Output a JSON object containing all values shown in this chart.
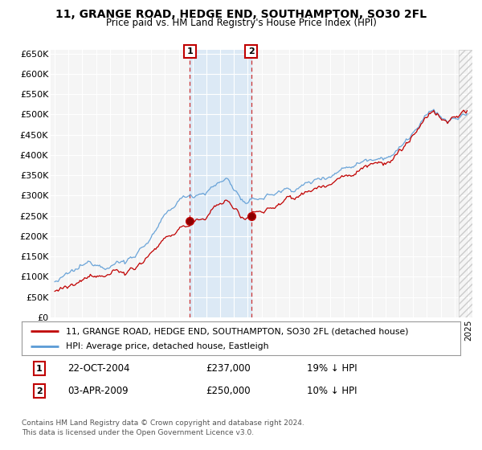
{
  "title": "11, GRANGE ROAD, HEDGE END, SOUTHAMPTON, SO30 2FL",
  "subtitle": "Price paid vs. HM Land Registry's House Price Index (HPI)",
  "ylim": [
    0,
    660000
  ],
  "yticks": [
    0,
    50000,
    100000,
    150000,
    200000,
    250000,
    300000,
    350000,
    400000,
    450000,
    500000,
    550000,
    600000,
    650000
  ],
  "ytick_labels": [
    "£0",
    "£50K",
    "£100K",
    "£150K",
    "£200K",
    "£250K",
    "£300K",
    "£350K",
    "£400K",
    "£450K",
    "£500K",
    "£550K",
    "£600K",
    "£650K"
  ],
  "hpi_color": "#5b9bd5",
  "price_color": "#c00000",
  "transaction1_date": 2004.81,
  "transaction1_price": 237000,
  "transaction2_date": 2009.25,
  "transaction2_price": 250000,
  "legend_line1": "11, GRANGE ROAD, HEDGE END, SOUTHAMPTON, SO30 2FL (detached house)",
  "legend_line2": "HPI: Average price, detached house, Eastleigh",
  "annotation1_date": "22-OCT-2004",
  "annotation1_price": "£237,000",
  "annotation1_hpi": "19% ↓ HPI",
  "annotation2_date": "03-APR-2009",
  "annotation2_price": "£250,000",
  "annotation2_hpi": "10% ↓ HPI",
  "footer": "Contains HM Land Registry data © Crown copyright and database right 2024.\nThis data is licensed under the Open Government Licence v3.0.",
  "bg_color": "#ffffff",
  "plot_bg_color": "#f5f5f5",
  "highlight_color": "#dce9f5",
  "box_color": "#c00000"
}
